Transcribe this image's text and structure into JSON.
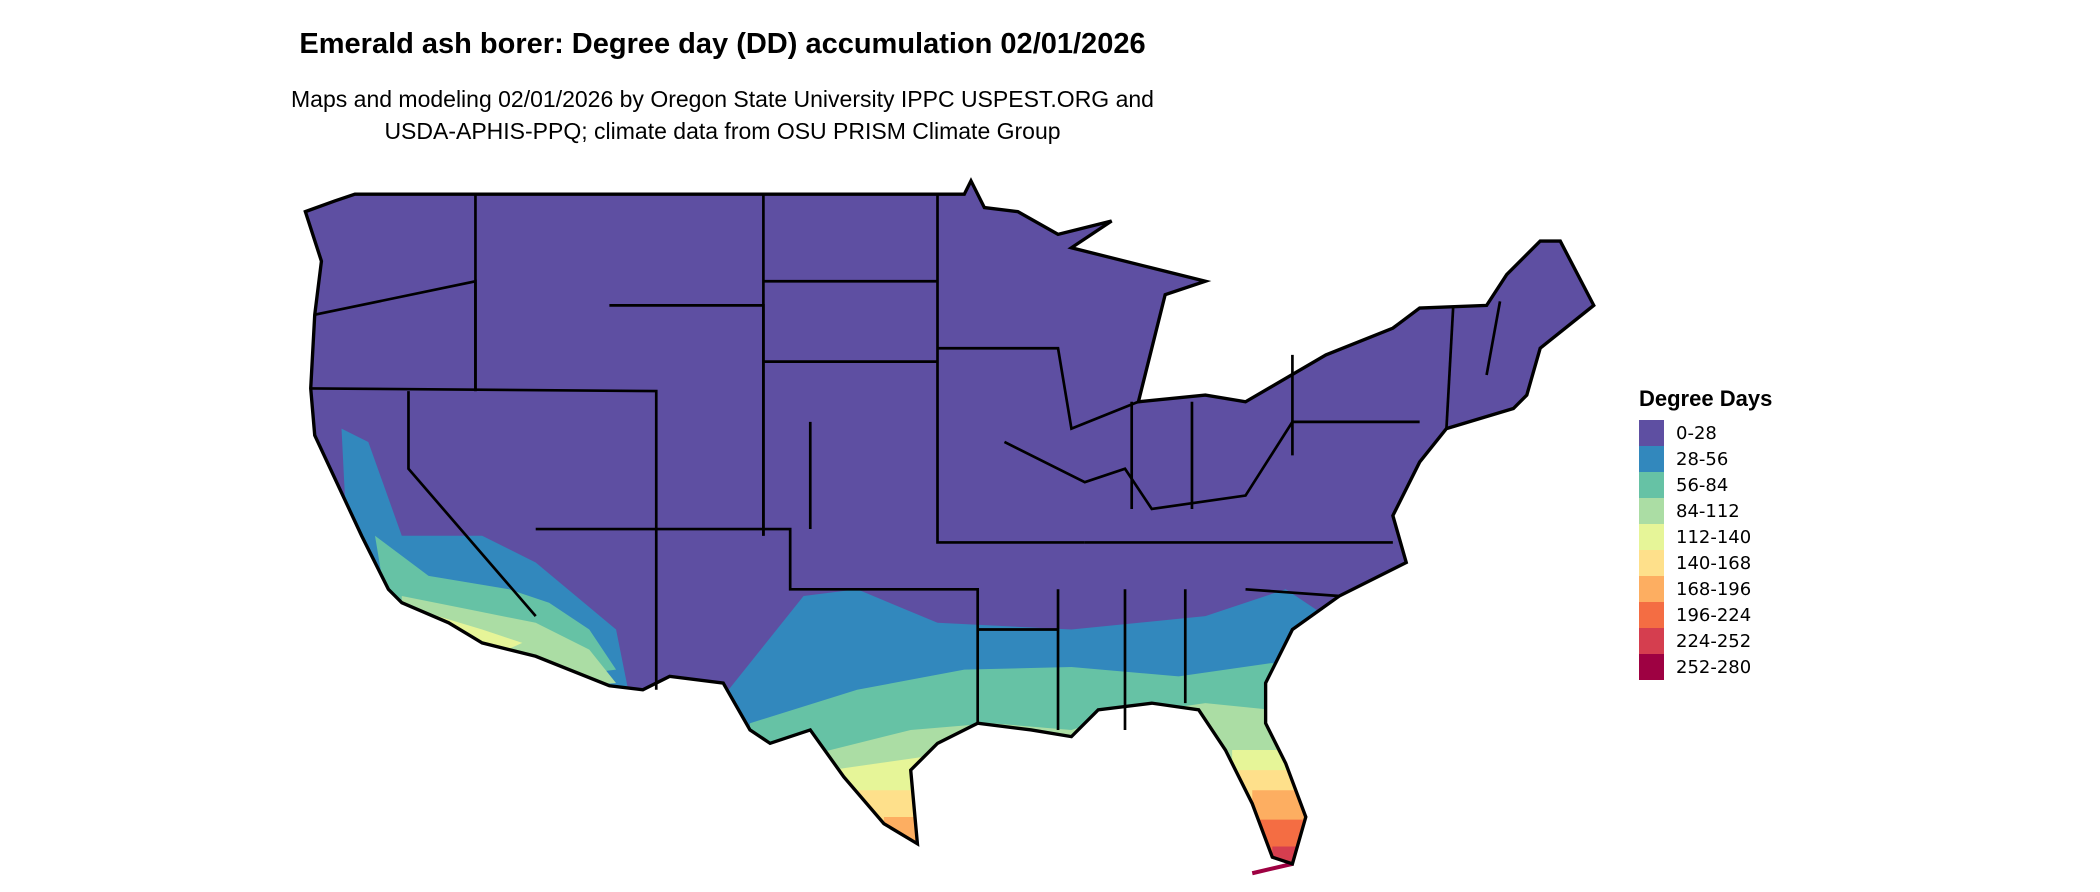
{
  "title": "Emerald ash borer: Degree day (DD) accumulation 02/01/2026",
  "subtitle_line1": "Maps and modeling 02/01/2026 by Oregon State University IPPC USPEST.ORG and",
  "subtitle_line2": "USDA-APHIS-PPQ; climate data from OSU PRISM Climate Group",
  "legend": {
    "title": "Degree Days",
    "items": [
      {
        "label": "0-28",
        "color": "#5E4FA2"
      },
      {
        "label": "28-56",
        "color": "#3288BD"
      },
      {
        "label": "56-84",
        "color": "#66C2A5"
      },
      {
        "label": "84-112",
        "color": "#ABDDA4"
      },
      {
        "label": "112-140",
        "color": "#E6F598"
      },
      {
        "label": "140-168",
        "color": "#FEE08B"
      },
      {
        "label": "168-196",
        "color": "#FDAE61"
      },
      {
        "label": "196-224",
        "color": "#F46D43"
      },
      {
        "label": "224-252",
        "color": "#D53E4F"
      },
      {
        "label": "252-280",
        "color": "#9E0142"
      }
    ]
  }
}
